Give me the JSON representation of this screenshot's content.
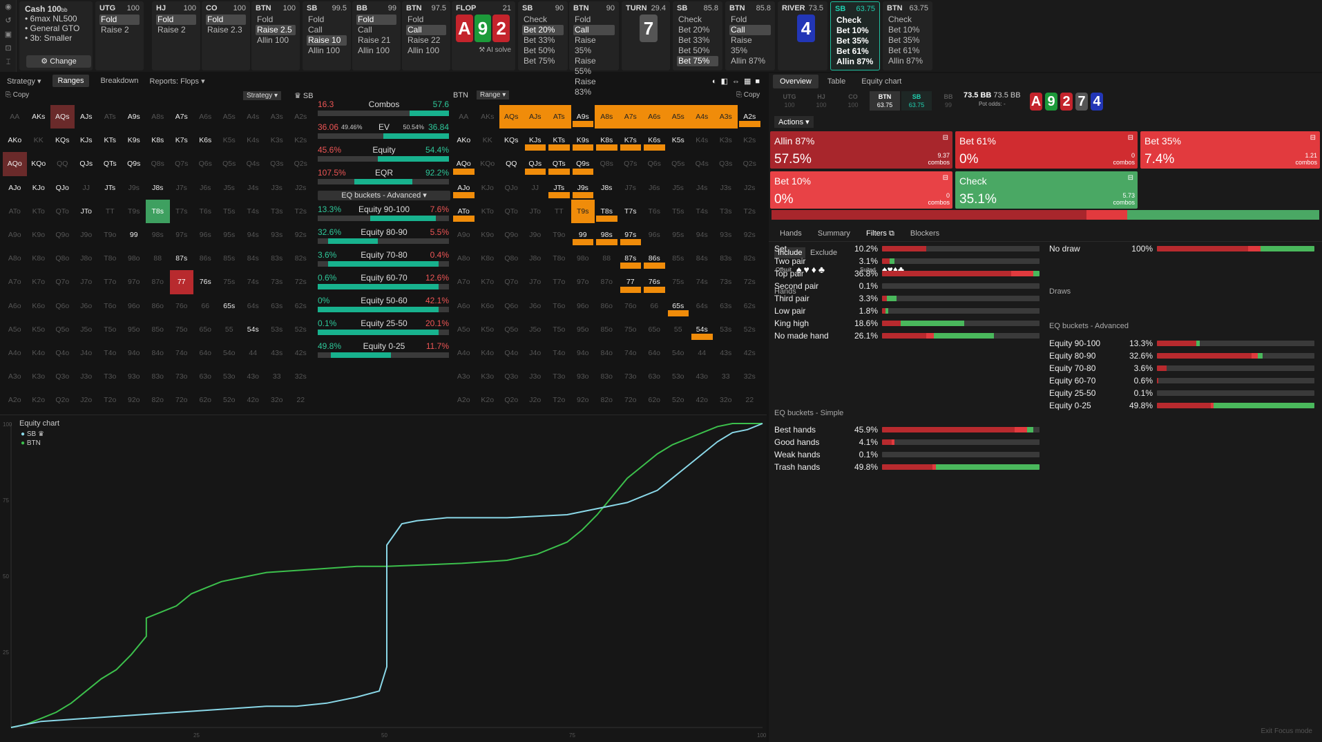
{
  "cash": {
    "title": "Cash",
    "stack": "100",
    "stack_unit": "bb",
    "lines": [
      "6max NL500",
      "General GTO",
      "3b: Smaller"
    ],
    "change": "Change"
  },
  "columns": [
    {
      "pos": "UTG",
      "stack": "100",
      "actions": [
        "Fold",
        "Raise 2"
      ],
      "sel": 0
    },
    {
      "pos": "HJ",
      "stack": "100",
      "actions": [
        "Fold",
        "Raise 2"
      ],
      "sel": 0
    },
    {
      "pos": "CO",
      "stack": "100",
      "actions": [
        "Fold",
        "Raise 2.3"
      ],
      "sel": 0
    },
    {
      "pos": "BTN",
      "stack": "100",
      "actions": [
        "Fold",
        "Raise 2.5",
        "Allin 100"
      ],
      "sel": 1
    },
    {
      "pos": "SB",
      "stack": "99.5",
      "actions": [
        "Fold",
        "Call",
        "Raise 10",
        "Allin 100"
      ],
      "sel": 2
    },
    {
      "pos": "BB",
      "stack": "99",
      "actions": [
        "Fold",
        "Call",
        "Raise 21",
        "Allin 100"
      ],
      "sel": 0
    },
    {
      "pos": "BTN",
      "stack": "97.5",
      "actions": [
        "Fold",
        "Call",
        "Raise 22",
        "Allin 100"
      ],
      "sel": 1
    }
  ],
  "flop": {
    "label": "FLOP",
    "pot": "21",
    "cards": [
      {
        "r": "A",
        "c": "red"
      },
      {
        "r": "9",
        "c": "green"
      },
      {
        "r": "2",
        "c": "red"
      }
    ],
    "ai": "AI solve"
  },
  "columns2": [
    {
      "pos": "SB",
      "stack": "90",
      "actions": [
        "Check",
        "Bet 20%",
        "Bet 33%",
        "Bet 50%",
        "Bet 75%"
      ],
      "sel": 1
    },
    {
      "pos": "BTN",
      "stack": "90",
      "actions": [
        "Fold",
        "Call",
        "Raise 35%",
        "Raise 55%",
        "Raise 83%"
      ],
      "sel": 1
    }
  ],
  "turn": {
    "label": "TURN",
    "pot": "29.4",
    "card": {
      "r": "7",
      "c": "gray"
    }
  },
  "columns3": [
    {
      "pos": "SB",
      "stack": "85.8",
      "actions": [
        "Check",
        "Bet 20%",
        "Bet 33%",
        "Bet 50%",
        "Bet 75%"
      ],
      "sel": 4
    },
    {
      "pos": "BTN",
      "stack": "85.8",
      "actions": [
        "Fold",
        "Call",
        "Raise 35%",
        "Allin 87%"
      ],
      "sel": 1
    }
  ],
  "river": {
    "label": "RIVER",
    "pot": "73.5",
    "card": {
      "r": "4",
      "c": "blue"
    }
  },
  "columns4": [
    {
      "pos": "SB",
      "stack": "63.75",
      "actions": [
        "Check",
        "Bet 10%",
        "Bet 35%",
        "Bet 61%",
        "Allin 87%"
      ],
      "active": true
    },
    {
      "pos": "BTN",
      "stack": "63.75",
      "actions": [
        "Check",
        "Bet 10%",
        "Bet 35%",
        "Bet 61%",
        "Allin 87%"
      ]
    }
  ],
  "tabs": {
    "strategy": "Strategy",
    "ranges": "Ranges",
    "breakdown": "Breakdown",
    "reports": "Reports: Flops"
  },
  "left_hdr": {
    "copy": "Copy",
    "strategy": "Strategy",
    "player": "SB"
  },
  "right_hdr": {
    "player": "BTN",
    "range": "Range",
    "copy": "Copy"
  },
  "hands": [
    [
      "AA",
      "AKs",
      "AQs",
      "AJs",
      "ATs",
      "A9s",
      "A8s",
      "A7s",
      "A6s",
      "A5s",
      "A4s",
      "A3s",
      "A2s"
    ],
    [
      "AKo",
      "KK",
      "KQs",
      "KJs",
      "KTs",
      "K9s",
      "K8s",
      "K7s",
      "K6s",
      "K5s",
      "K4s",
      "K3s",
      "K2s"
    ],
    [
      "AQo",
      "KQo",
      "QQ",
      "QJs",
      "QTs",
      "Q9s",
      "Q8s",
      "Q7s",
      "Q6s",
      "Q5s",
      "Q4s",
      "Q3s",
      "Q2s"
    ],
    [
      "AJo",
      "KJo",
      "QJo",
      "JJ",
      "JTs",
      "J9s",
      "J8s",
      "J7s",
      "J6s",
      "J5s",
      "J4s",
      "J3s",
      "J2s"
    ],
    [
      "ATo",
      "KTo",
      "QTo",
      "JTo",
      "TT",
      "T9s",
      "T8s",
      "T7s",
      "T6s",
      "T5s",
      "T4s",
      "T3s",
      "T2s"
    ],
    [
      "A9o",
      "K9o",
      "Q9o",
      "J9o",
      "T9o",
      "99",
      "98s",
      "97s",
      "96s",
      "95s",
      "94s",
      "93s",
      "92s"
    ],
    [
      "A8o",
      "K8o",
      "Q8o",
      "J8o",
      "T8o",
      "98o",
      "88",
      "87s",
      "86s",
      "85s",
      "84s",
      "83s",
      "82s"
    ],
    [
      "A7o",
      "K7o",
      "Q7o",
      "J7o",
      "T7o",
      "97o",
      "87o",
      "77",
      "76s",
      "75s",
      "74s",
      "73s",
      "72s"
    ],
    [
      "A6o",
      "K6o",
      "Q6o",
      "J6o",
      "T6o",
      "96o",
      "86o",
      "76o",
      "66",
      "65s",
      "64s",
      "63s",
      "62s"
    ],
    [
      "A5o",
      "K5o",
      "Q5o",
      "J5o",
      "T5o",
      "95o",
      "85o",
      "75o",
      "65o",
      "55",
      "54s",
      "53s",
      "52s"
    ],
    [
      "A4o",
      "K4o",
      "Q4o",
      "J4o",
      "T4o",
      "94o",
      "84o",
      "74o",
      "64o",
      "54o",
      "44",
      "43s",
      "42s"
    ],
    [
      "A3o",
      "K3o",
      "Q3o",
      "J3o",
      "T3o",
      "93o",
      "83o",
      "73o",
      "63o",
      "53o",
      "43o",
      "33",
      "32s"
    ],
    [
      "A2o",
      "K2o",
      "Q2o",
      "J2o",
      "T2o",
      "92o",
      "82o",
      "72o",
      "62o",
      "52o",
      "42o",
      "32o",
      "22"
    ]
  ],
  "mid": {
    "combos": {
      "l": "16.3",
      "r": "57.6",
      "label": "Combos"
    },
    "ev": {
      "l": "36.06",
      "lp": "49.46%",
      "rp": "50.54%",
      "r": "36.84",
      "label": "EV"
    },
    "equity": {
      "l": "45.6%",
      "r": "54.4%",
      "label": "Equity"
    },
    "eqr": {
      "l": "107.5%",
      "r": "92.2%",
      "label": "EQR"
    },
    "bucket_select": "EQ buckets - Advanced",
    "buckets": [
      [
        "13.3%",
        "Equity 90-100",
        "7.6%"
      ],
      [
        "32.6%",
        "Equity 80-90",
        "5.5%"
      ],
      [
        "3.6%",
        "Equity 70-80",
        "0.4%"
      ],
      [
        "0.6%",
        "Equity 60-70",
        "12.6%"
      ],
      [
        "0%",
        "Equity 50-60",
        "42.1%"
      ],
      [
        "0.1%",
        "Equity 25-50",
        "20.1%"
      ],
      [
        "49.8%",
        "Equity 0-25",
        "11.7%"
      ]
    ]
  },
  "equity_chart": {
    "title": "Equity chart",
    "legend": [
      "SB",
      "BTN"
    ],
    "yticks": [
      "100",
      "75",
      "50",
      "25"
    ],
    "xticks": [
      "25",
      "50",
      "75",
      "100"
    ]
  },
  "right": {
    "tabs": [
      "Overview",
      "Table",
      "Equity chart"
    ],
    "seats": [
      [
        "UTG",
        "100"
      ],
      [
        "HJ",
        "100"
      ],
      [
        "CO",
        "100"
      ],
      [
        "BTN",
        "63.75"
      ],
      [
        "SB",
        "63.75"
      ],
      [
        "BB",
        "99"
      ]
    ],
    "pot": "73.5 BB",
    "pot2": "73.5 BB",
    "potodds": "Pot odds: -",
    "board": [
      {
        "r": "A",
        "c": "red"
      },
      {
        "r": "9",
        "c": "green"
      },
      {
        "r": "2",
        "c": "red"
      },
      {
        "r": "7",
        "c": "gray"
      },
      {
        "r": "4",
        "c": "blue"
      }
    ],
    "actions_label": "Actions",
    "boxes": [
      {
        "n": "Allin 87%",
        "p": "57.5%",
        "c": "9.37",
        "col": "#a8262c"
      },
      {
        "n": "Bet 61%",
        "p": "0%",
        "c": "0",
        "col": "#d02c30"
      },
      {
        "n": "Bet 35%",
        "p": "7.4%",
        "c": "1.21",
        "col": "#e23a3e"
      },
      {
        "n": "Bet 10%",
        "p": "0%",
        "c": "0",
        "col": "#e84246"
      },
      {
        "n": "Check",
        "p": "35.1%",
        "c": "5.73",
        "col": "#4aa864"
      }
    ],
    "combos_word": "combos",
    "subtabs": [
      "Hands",
      "Summary",
      "Filters",
      "Blockers"
    ],
    "include": "Include",
    "exclude": "Exclude",
    "offsuit": "Offsuit",
    "suited": "Suited",
    "hands_hdr": "Hands",
    "draws_hdr": "Draws",
    "eqadv_hdr": "EQ buckets - Advanced",
    "eqsim_hdr": "EQ buckets - Simple",
    "hands": [
      [
        "Set",
        "10.2%"
      ],
      [
        "Two pair",
        "3.1%"
      ],
      [
        "Top pair",
        "36.8%"
      ],
      [
        "Second pair",
        "0.1%"
      ],
      [
        "Third pair",
        "3.3%"
      ],
      [
        "Low pair",
        "1.8%"
      ],
      [
        "King high",
        "18.6%"
      ],
      [
        "No made hand",
        "26.1%"
      ]
    ],
    "draws": [
      [
        "No draw",
        "100%"
      ]
    ],
    "eqadv": [
      [
        "Equity 90-100",
        "13.3%"
      ],
      [
        "Equity 80-90",
        "32.6%"
      ],
      [
        "Equity 70-80",
        "3.6%"
      ],
      [
        "Equity 60-70",
        "0.6%"
      ],
      [
        "Equity 25-50",
        "0.1%"
      ],
      [
        "Equity 0-25",
        "49.8%"
      ]
    ],
    "eqsim": [
      [
        "Best hands",
        "45.9%"
      ],
      [
        "Good hands",
        "4.1%"
      ],
      [
        "Weak hands",
        "0.1%"
      ],
      [
        "Trash hands",
        "49.8%"
      ]
    ],
    "exit": "Exit Focus mode"
  }
}
